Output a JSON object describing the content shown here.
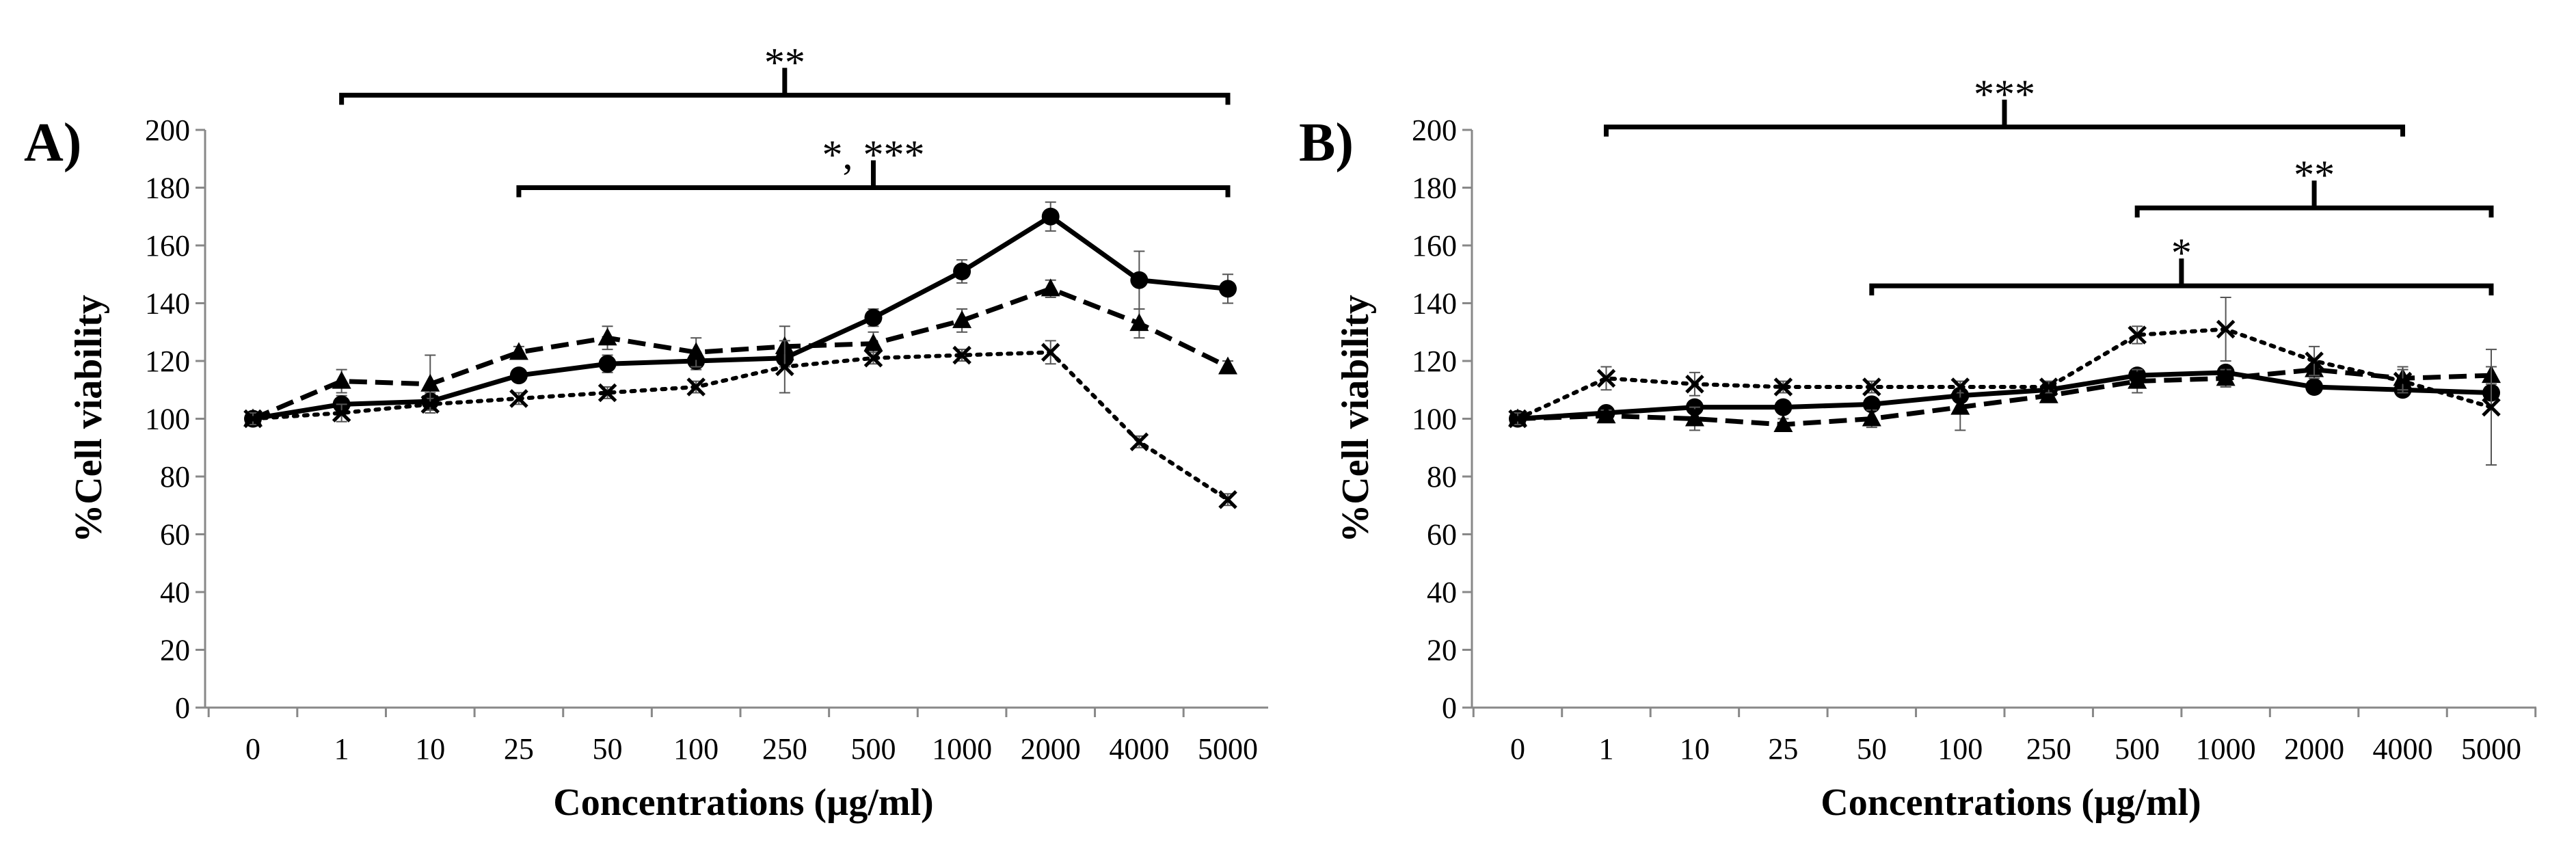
{
  "chart_data": [
    {
      "type": "line",
      "panel_label": "A)",
      "xlabel": "Concentrations (µg/ml)",
      "ylabel": "%Cell viability",
      "categories": [
        "0",
        "1",
        "10",
        "25",
        "50",
        "100",
        "250",
        "500",
        "1000",
        "2000",
        "4000",
        "5000"
      ],
      "ylim": [
        0,
        200
      ],
      "yticks": [
        0,
        20,
        40,
        60,
        80,
        100,
        120,
        140,
        160,
        180,
        200
      ],
      "grid": false,
      "series": [
        {
          "name": "circle",
          "marker": "circle",
          "line": "solid",
          "values": [
            100,
            105,
            106,
            115,
            119,
            120,
            121,
            135,
            151,
            170,
            148,
            145
          ],
          "errors": [
            2,
            3,
            3,
            2,
            3,
            3,
            3,
            3,
            4,
            5,
            10,
            5
          ]
        },
        {
          "name": "triangle",
          "marker": "triangle",
          "line": "dashed",
          "values": [
            100,
            113,
            112,
            123,
            128,
            123,
            125,
            126,
            134,
            145,
            133,
            118
          ],
          "errors": [
            2,
            4,
            10,
            2,
            4,
            5,
            7,
            4,
            4,
            3,
            5,
            2
          ]
        },
        {
          "name": "cross",
          "marker": "x",
          "line": "dotted",
          "values": [
            100,
            102,
            105,
            107,
            109,
            111,
            118,
            121,
            122,
            123,
            92,
            72
          ],
          "errors": [
            2,
            3,
            2,
            2,
            2,
            2,
            9,
            2,
            2,
            4,
            2,
            2
          ]
        }
      ],
      "significance": [
        {
          "label": "**",
          "from": 1,
          "to": 11,
          "level": 212
        },
        {
          "label": "*, ***",
          "from": 3,
          "to": 11,
          "level": 180
        }
      ]
    },
    {
      "type": "line",
      "panel_label": "B)",
      "xlabel": "Concentrations (µg/ml)",
      "ylabel": "%Cell viability",
      "categories": [
        "0",
        "1",
        "10",
        "25",
        "50",
        "100",
        "250",
        "500",
        "1000",
        "2000",
        "4000",
        "5000"
      ],
      "ylim": [
        0,
        200
      ],
      "yticks": [
        0,
        20,
        40,
        60,
        80,
        100,
        120,
        140,
        160,
        180,
        200
      ],
      "grid": false,
      "series": [
        {
          "name": "circle",
          "marker": "circle",
          "line": "solid",
          "values": [
            100,
            102,
            104,
            104,
            105,
            108,
            110,
            115,
            116,
            111,
            110,
            109
          ],
          "errors": [
            2,
            2,
            2,
            2,
            2,
            2,
            2,
            2,
            2,
            2,
            2,
            2
          ]
        },
        {
          "name": "triangle",
          "marker": "triangle",
          "line": "dashed",
          "values": [
            100,
            101,
            100,
            98,
            100,
            104,
            108,
            113,
            114,
            117,
            114,
            115
          ],
          "errors": [
            2,
            2,
            4,
            2,
            3,
            8,
            2,
            4,
            3,
            3,
            4,
            3
          ]
        },
        {
          "name": "cross",
          "marker": "x",
          "line": "dotted",
          "values": [
            100,
            114,
            112,
            111,
            111,
            111,
            111,
            129,
            131,
            120,
            113,
            104
          ],
          "errors": [
            2,
            4,
            4,
            2,
            2,
            2,
            2,
            3,
            11,
            5,
            4,
            20
          ]
        }
      ],
      "significance": [
        {
          "label": "***",
          "from": 1,
          "to": 10,
          "level": 201
        },
        {
          "label": "**",
          "from": 7,
          "to": 11,
          "level": 173
        },
        {
          "label": "*",
          "from": 4,
          "to": 11,
          "level": 146
        }
      ]
    }
  ]
}
